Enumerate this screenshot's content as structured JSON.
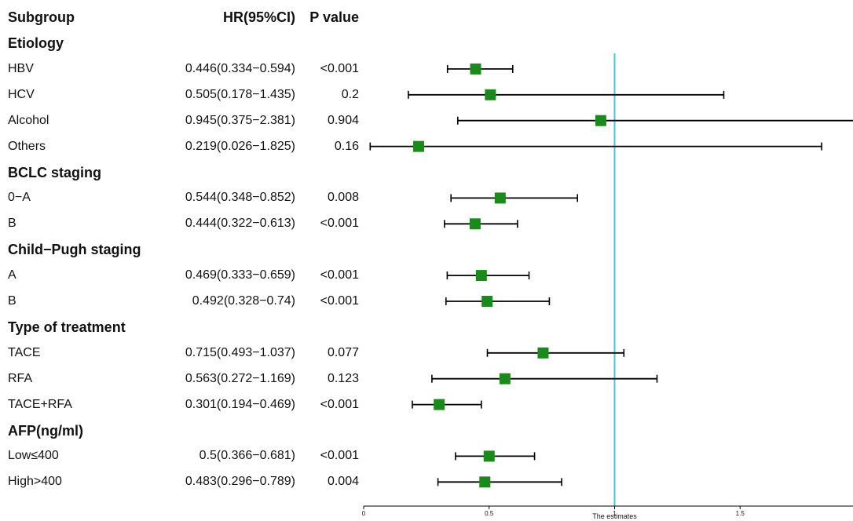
{
  "header": {
    "subgroup": "Subgroup",
    "hr": "HR(95%CI)",
    "p": "P value"
  },
  "colors": {
    "marker": "#1a8a1a",
    "reference_line": "#4fc4d8",
    "whisker": "#000000"
  },
  "chart_data": {
    "type": "forest",
    "xlabel": "The estimates",
    "xlim": [
      0,
      1.95
    ],
    "xticks": [
      0,
      0.5,
      1,
      1.5
    ],
    "xtick_labels": [
      "0",
      "0.5",
      "1",
      "1.5"
    ],
    "reference_value": 1,
    "groups": [
      {
        "name": "Etiology",
        "rows": [
          {
            "label": "HBV",
            "hr_text": "0.446(0.334−0.594)",
            "p": "<0.001",
            "est": 0.446,
            "lo": 0.334,
            "hi": 0.594
          },
          {
            "label": "HCV",
            "hr_text": "0.505(0.178−1.435)",
            "p": "0.2",
            "est": 0.505,
            "lo": 0.178,
            "hi": 1.435
          },
          {
            "label": "Alcohol",
            "hr_text": "0.945(0.375−2.381)",
            "p": "0.904",
            "est": 0.945,
            "lo": 0.375,
            "hi": 2.381
          },
          {
            "label": "Others",
            "hr_text": "0.219(0.026−1.825)",
            "p": "0.16",
            "est": 0.219,
            "lo": 0.026,
            "hi": 1.825
          }
        ]
      },
      {
        "name": "BCLC staging",
        "rows": [
          {
            "label": "0−A",
            "hr_text": "0.544(0.348−0.852)",
            "p": "0.008",
            "est": 0.544,
            "lo": 0.348,
            "hi": 0.852
          },
          {
            "label": "B",
            "hr_text": "0.444(0.322−0.613)",
            "p": "<0.001",
            "est": 0.444,
            "lo": 0.322,
            "hi": 0.613
          }
        ]
      },
      {
        "name": "Child−Pugh staging",
        "rows": [
          {
            "label": "A",
            "hr_text": "0.469(0.333−0.659)",
            "p": "<0.001",
            "est": 0.469,
            "lo": 0.333,
            "hi": 0.659
          },
          {
            "label": "B",
            "hr_text": "0.492(0.328−0.74)",
            "p": "<0.001",
            "est": 0.492,
            "lo": 0.328,
            "hi": 0.74
          }
        ]
      },
      {
        "name": "Type of treatment",
        "rows": [
          {
            "label": "TACE",
            "hr_text": "0.715(0.493−1.037)",
            "p": "0.077",
            "est": 0.715,
            "lo": 0.493,
            "hi": 1.037
          },
          {
            "label": "RFA",
            "hr_text": "0.563(0.272−1.169)",
            "p": "0.123",
            "est": 0.563,
            "lo": 0.272,
            "hi": 1.169
          },
          {
            "label": "TACE+RFA",
            "hr_text": "0.301(0.194−0.469)",
            "p": "<0.001",
            "est": 0.301,
            "lo": 0.194,
            "hi": 0.469
          }
        ]
      },
      {
        "name": "AFP(ng/ml)",
        "rows": [
          {
            "label": "Low≤400",
            "hr_text": "0.5(0.366−0.681)",
            "p": "<0.001",
            "est": 0.5,
            "lo": 0.366,
            "hi": 0.681
          },
          {
            "label": "High>400",
            "hr_text": "0.483(0.296−0.789)",
            "p": "0.004",
            "est": 0.483,
            "lo": 0.296,
            "hi": 0.789
          }
        ]
      }
    ]
  }
}
